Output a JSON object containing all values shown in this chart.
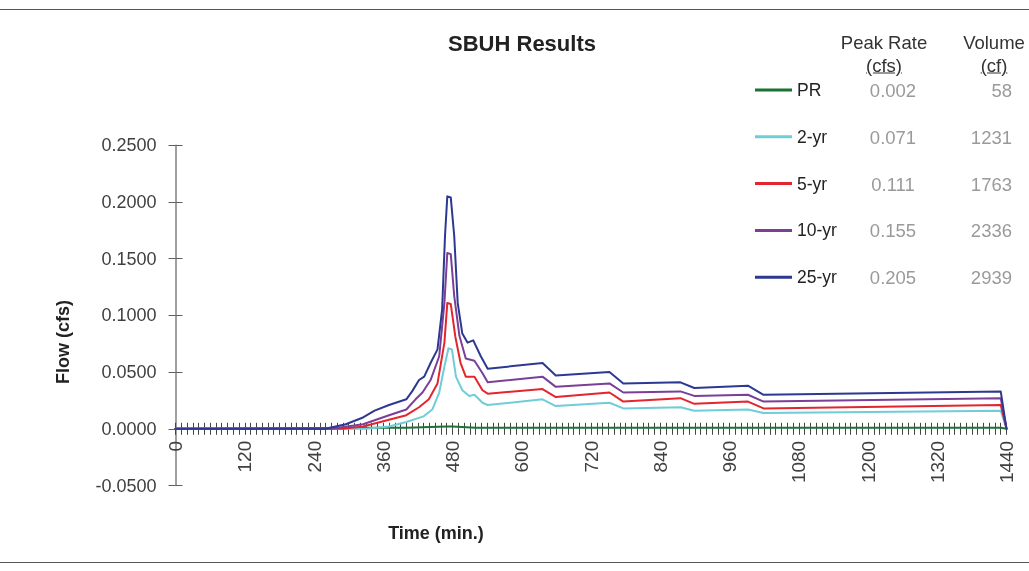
{
  "chart_data": {
    "type": "line",
    "title": "SBUH Results",
    "xlabel": "Time (min.)",
    "ylabel": "Flow (cfs)",
    "xlim": [
      0,
      1440
    ],
    "xticks": [
      0,
      {
        "value": 10,
        "label": null
      },
      {
        "value": 20,
        "label": null
      },
      {
        "value": 30,
        "label": null
      },
      {
        "value": 40,
        "label": null
      },
      {
        "value": 50,
        "label": null
      },
      {
        "value": 60,
        "label": null
      },
      {
        "value": 70,
        "label": null
      },
      {
        "value": 80,
        "label": null
      },
      {
        "value": 90,
        "label": null
      },
      {
        "value": 100,
        "label": null
      },
      {
        "value": 110,
        "label": null
      },
      120,
      {
        "value": 130,
        "label": null
      },
      {
        "value": 140,
        "label": null
      },
      {
        "value": 150,
        "label": null
      },
      {
        "value": 160,
        "label": null
      },
      {
        "value": 170,
        "label": null
      },
      {
        "value": 180,
        "label": null
      },
      {
        "value": 190,
        "label": null
      },
      {
        "value": 200,
        "label": null
      },
      {
        "value": 210,
        "label": null
      },
      {
        "value": 220,
        "label": null
      },
      {
        "value": 230,
        "label": null
      },
      240,
      {
        "value": 250,
        "label": null
      },
      {
        "value": 260,
        "label": null
      },
      {
        "value": 270,
        "label": null
      },
      {
        "value": 280,
        "label": null
      },
      {
        "value": 290,
        "label": null
      },
      {
        "value": 300,
        "label": null
      },
      {
        "value": 310,
        "label": null
      },
      {
        "value": 320,
        "label": null
      },
      {
        "value": 330,
        "label": null
      },
      {
        "value": 340,
        "label": null
      },
      {
        "value": 350,
        "label": null
      },
      360,
      {
        "value": 370,
        "label": null
      },
      {
        "value": 380,
        "label": null
      },
      {
        "value": 390,
        "label": null
      },
      {
        "value": 400,
        "label": null
      },
      {
        "value": 410,
        "label": null
      },
      {
        "value": 420,
        "label": null
      },
      {
        "value": 430,
        "label": null
      },
      {
        "value": 440,
        "label": null
      },
      {
        "value": 450,
        "label": null
      },
      {
        "value": 460,
        "label": null
      },
      {
        "value": 470,
        "label": null
      },
      480,
      {
        "value": 490,
        "label": null
      },
      {
        "value": 500,
        "label": null
      },
      {
        "value": 510,
        "label": null
      },
      {
        "value": 520,
        "label": null
      },
      {
        "value": 530,
        "label": null
      },
      {
        "value": 540,
        "label": null
      },
      {
        "value": 550,
        "label": null
      },
      {
        "value": 560,
        "label": null
      },
      {
        "value": 570,
        "label": null
      },
      {
        "value": 580,
        "label": null
      },
      {
        "value": 590,
        "label": null
      },
      600,
      {
        "value": 610,
        "label": null
      },
      {
        "value": 620,
        "label": null
      },
      {
        "value": 630,
        "label": null
      },
      {
        "value": 640,
        "label": null
      },
      {
        "value": 650,
        "label": null
      },
      {
        "value": 660,
        "label": null
      },
      {
        "value": 670,
        "label": null
      },
      {
        "value": 680,
        "label": null
      },
      {
        "value": 690,
        "label": null
      },
      {
        "value": 700,
        "label": null
      },
      {
        "value": 710,
        "label": null
      },
      720,
      {
        "value": 730,
        "label": null
      },
      {
        "value": 740,
        "label": null
      },
      {
        "value": 750,
        "label": null
      },
      {
        "value": 760,
        "label": null
      },
      {
        "value": 770,
        "label": null
      },
      {
        "value": 780,
        "label": null
      },
      {
        "value": 790,
        "label": null
      },
      {
        "value": 800,
        "label": null
      },
      {
        "value": 810,
        "label": null
      },
      {
        "value": 820,
        "label": null
      },
      {
        "value": 830,
        "label": null
      },
      840,
      {
        "value": 850,
        "label": null
      },
      {
        "value": 860,
        "label": null
      },
      {
        "value": 870,
        "label": null
      },
      {
        "value": 880,
        "label": null
      },
      {
        "value": 890,
        "label": null
      },
      {
        "value": 900,
        "label": null
      },
      {
        "value": 910,
        "label": null
      },
      {
        "value": 920,
        "label": null
      },
      {
        "value": 930,
        "label": null
      },
      {
        "value": 940,
        "label": null
      },
      {
        "value": 950,
        "label": null
      },
      960,
      {
        "value": 970,
        "label": null
      },
      {
        "value": 980,
        "label": null
      },
      {
        "value": 990,
        "label": null
      },
      {
        "value": 1000,
        "label": null
      },
      {
        "value": 1010,
        "label": null
      },
      {
        "value": 1020,
        "label": null
      },
      {
        "value": 1030,
        "label": null
      },
      {
        "value": 1040,
        "label": null
      },
      {
        "value": 1050,
        "label": null
      },
      {
        "value": 1060,
        "label": null
      },
      {
        "value": 1070,
        "label": null
      },
      1080,
      {
        "value": 1090,
        "label": null
      },
      {
        "value": 1100,
        "label": null
      },
      {
        "value": 1110,
        "label": null
      },
      {
        "value": 1120,
        "label": null
      },
      {
        "value": 1130,
        "label": null
      },
      {
        "value": 1140,
        "label": null
      },
      {
        "value": 1150,
        "label": null
      },
      {
        "value": 1160,
        "label": null
      },
      {
        "value": 1170,
        "label": null
      },
      {
        "value": 1180,
        "label": null
      },
      {
        "value": 1190,
        "label": null
      },
      1200,
      {
        "value": 1210,
        "label": null
      },
      {
        "value": 1220,
        "label": null
      },
      {
        "value": 1230,
        "label": null
      },
      {
        "value": 1240,
        "label": null
      },
      {
        "value": 1250,
        "label": null
      },
      {
        "value": 1260,
        "label": null
      },
      {
        "value": 1270,
        "label": null
      },
      {
        "value": 1280,
        "label": null
      },
      {
        "value": 1290,
        "label": null
      },
      {
        "value": 1300,
        "label": null
      },
      {
        "value": 1310,
        "label": null
      },
      1320,
      {
        "value": 1330,
        "label": null
      },
      {
        "value": 1340,
        "label": null
      },
      {
        "value": 1350,
        "label": null
      },
      {
        "value": 1360,
        "label": null
      },
      {
        "value": 1370,
        "label": null
      },
      {
        "value": 1380,
        "label": null
      },
      {
        "value": 1390,
        "label": null
      },
      {
        "value": 1400,
        "label": null
      },
      {
        "value": 1410,
        "label": null
      },
      {
        "value": 1420,
        "label": null
      },
      {
        "value": 1430,
        "label": null
      },
      1440
    ],
    "ylim": [
      -0.05,
      0.25
    ],
    "yticks": [
      {
        "value": -0.05,
        "label": "-0.0500"
      },
      {
        "value": 0,
        "label": "0.0000"
      },
      {
        "value": 0.05,
        "label": "0.0500"
      },
      {
        "value": 0.1,
        "label": "0.1000"
      },
      {
        "value": 0.15,
        "label": "0.1500"
      },
      {
        "value": 0.2,
        "label": "0.2000"
      },
      {
        "value": 0.25,
        "label": "0.2500"
      }
    ],
    "series": [
      {
        "name": "PR",
        "color": "#1a7334",
        "x": [
          0,
          360,
          400,
          470,
          480,
          520,
          600,
          1000,
          1430,
          1440
        ],
        "values": [
          0,
          0.001,
          0.001,
          0.002,
          0.002,
          0.001,
          0.001,
          0.001,
          0.001,
          0
        ]
      },
      {
        "name": "2-yr",
        "color": "#6fcdd8",
        "x": [
          0,
          330,
          370,
          400,
          430,
          445,
          457,
          466,
          473,
          479,
          486,
          497,
          509,
          518,
          532,
          541,
          636,
          659,
          752,
          776,
          875,
          899,
          992,
          1019,
          1430,
          1440
        ],
        "values": [
          0,
          0,
          0.002,
          0.006,
          0.011,
          0.017,
          0.032,
          0.055,
          0.071,
          0.07,
          0.046,
          0.034,
          0.029,
          0.03,
          0.023,
          0.021,
          0.026,
          0.02,
          0.023,
          0.018,
          0.019,
          0.016,
          0.017,
          0.014,
          0.016,
          0
        ]
      },
      {
        "name": "5-yr",
        "color": "#e3262d",
        "x": [
          0,
          290,
          325,
          370,
          400,
          422,
          439,
          454,
          466,
          471,
          477,
          485,
          494,
          503,
          518,
          532,
          541,
          636,
          659,
          752,
          776,
          875,
          899,
          992,
          1019,
          1430,
          1440
        ],
        "values": [
          0,
          0,
          0.002,
          0.008,
          0.012,
          0.019,
          0.026,
          0.04,
          0.076,
          0.111,
          0.11,
          0.081,
          0.058,
          0.046,
          0.046,
          0.034,
          0.031,
          0.035,
          0.028,
          0.032,
          0.024,
          0.027,
          0.022,
          0.024,
          0.018,
          0.021,
          0
        ]
      },
      {
        "name": "10-yr",
        "color": "#7b3f98",
        "x": [
          0,
          270,
          325,
          370,
          400,
          416,
          428,
          442,
          457,
          466,
          471,
          477,
          483,
          492,
          503,
          518,
          532,
          541,
          636,
          659,
          752,
          776,
          875,
          899,
          992,
          1019,
          1430,
          1440
        ],
        "values": [
          0,
          0,
          0.004,
          0.012,
          0.017,
          0.026,
          0.032,
          0.043,
          0.064,
          0.111,
          0.155,
          0.154,
          0.117,
          0.082,
          0.062,
          0.06,
          0.049,
          0.041,
          0.046,
          0.037,
          0.04,
          0.032,
          0.033,
          0.029,
          0.03,
          0.024,
          0.027,
          0
        ]
      },
      {
        "name": "25-yr",
        "color": "#2d3991",
        "x": [
          0,
          260,
          295,
          325,
          345,
          370,
          400,
          410,
          422,
          431,
          442,
          454,
          462,
          467,
          471,
          477,
          483,
          489,
          497,
          506,
          516,
          529,
          541,
          636,
          659,
          752,
          776,
          875,
          899,
          992,
          1019,
          1430,
          1440
        ],
        "values": [
          0,
          0,
          0.004,
          0.01,
          0.016,
          0.021,
          0.026,
          0.033,
          0.043,
          0.046,
          0.058,
          0.07,
          0.105,
          0.17,
          0.205,
          0.204,
          0.17,
          0.111,
          0.084,
          0.076,
          0.078,
          0.064,
          0.053,
          0.058,
          0.047,
          0.05,
          0.04,
          0.041,
          0.036,
          0.038,
          0.03,
          0.033,
          0
        ]
      }
    ],
    "annotations": [
      "Peak Rate",
      "Volume",
      "(cfs)",
      "(cf)",
      "0.002",
      "58",
      "0.071",
      "1231",
      "0.111",
      "1763",
      "0.155",
      "2336",
      "0.205",
      "2939"
    ],
    "legend": "top right",
    "grid": false,
    "marker": "none",
    "line_style": "solid"
  }
}
